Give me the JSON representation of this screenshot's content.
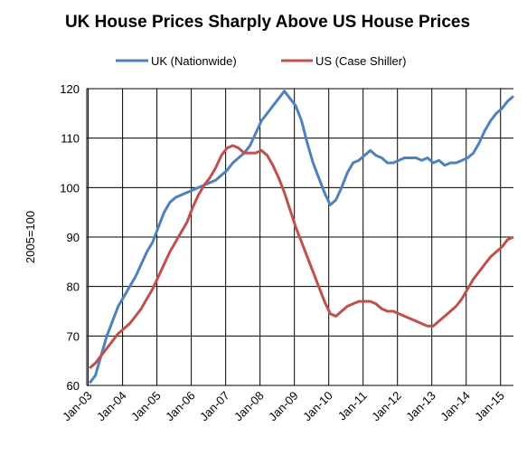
{
  "chart_data": {
    "type": "line",
    "title": "UK House Prices Sharply Above US House Prices",
    "ylabel": "2005=100",
    "xlabel": "",
    "ylim": [
      60,
      120
    ],
    "yticks": [
      "60",
      "70",
      "80",
      "90",
      "100",
      "110",
      "120"
    ],
    "xlim": [
      "2003-01",
      "2015-05"
    ],
    "xticks": [
      "Jan-03",
      "Jan-04",
      "Jan-05",
      "Jan-06",
      "Jan-07",
      "Jan-08",
      "Jan-09",
      "Jan-10",
      "Jan-11",
      "Jan-12",
      "Jan-13",
      "Jan-14",
      "Jan-15"
    ],
    "grid": true,
    "legend_position": "top",
    "series": [
      {
        "name": "UK (Nationwide)",
        "color": "#4F81BD",
        "points": [
          [
            "2003-01",
            60.5
          ],
          [
            "2003-03",
            62
          ],
          [
            "2003-05",
            66
          ],
          [
            "2003-07",
            70
          ],
          [
            "2003-09",
            73
          ],
          [
            "2003-11",
            76
          ],
          [
            "2004-01",
            78
          ],
          [
            "2004-03",
            80
          ],
          [
            "2004-05",
            82
          ],
          [
            "2004-07",
            84.5
          ],
          [
            "2004-09",
            87
          ],
          [
            "2004-11",
            89
          ],
          [
            "2005-01",
            92
          ],
          [
            "2005-03",
            95
          ],
          [
            "2005-05",
            97
          ],
          [
            "2005-07",
            98
          ],
          [
            "2005-09",
            98.5
          ],
          [
            "2005-11",
            99
          ],
          [
            "2006-01",
            99.5
          ],
          [
            "2006-03",
            100
          ],
          [
            "2006-05",
            100.5
          ],
          [
            "2006-07",
            101
          ],
          [
            "2006-09",
            101.5
          ],
          [
            "2006-11",
            102.5
          ],
          [
            "2007-01",
            103.5
          ],
          [
            "2007-03",
            105
          ],
          [
            "2007-05",
            106
          ],
          [
            "2007-07",
            107
          ],
          [
            "2007-09",
            108.5
          ],
          [
            "2007-11",
            111
          ],
          [
            "2008-01",
            113.5
          ],
          [
            "2008-03",
            115
          ],
          [
            "2008-05",
            116.5
          ],
          [
            "2008-07",
            118
          ],
          [
            "2008-09",
            119.5
          ],
          [
            "2008-11",
            118
          ],
          [
            "2009-01",
            116.5
          ],
          [
            "2009-03",
            113.5
          ],
          [
            "2009-05",
            109
          ],
          [
            "2009-07",
            105
          ],
          [
            "2009-09",
            102
          ],
          [
            "2009-11",
            99
          ],
          [
            "2010-01",
            96.5
          ],
          [
            "2010-03",
            97.5
          ],
          [
            "2010-05",
            100
          ],
          [
            "2010-07",
            103
          ],
          [
            "2010-09",
            105
          ],
          [
            "2010-11",
            105.5
          ],
          [
            "2011-01",
            106.5
          ],
          [
            "2011-03",
            107.5
          ],
          [
            "2011-05",
            106.5
          ],
          [
            "2011-07",
            106
          ],
          [
            "2011-09",
            105
          ],
          [
            "2011-11",
            105
          ],
          [
            "2012-01",
            105.5
          ],
          [
            "2012-03",
            106
          ],
          [
            "2012-05",
            106
          ],
          [
            "2012-07",
            106
          ],
          [
            "2012-09",
            105.5
          ],
          [
            "2012-11",
            106
          ],
          [
            "2013-01",
            105
          ],
          [
            "2013-03",
            105.5
          ],
          [
            "2013-05",
            104.5
          ],
          [
            "2013-07",
            105
          ],
          [
            "2013-09",
            105
          ],
          [
            "2013-11",
            105.5
          ],
          [
            "2014-01",
            106
          ],
          [
            "2014-03",
            107
          ],
          [
            "2014-05",
            109
          ],
          [
            "2014-07",
            111.5
          ],
          [
            "2014-09",
            113.5
          ],
          [
            "2014-11",
            115
          ],
          [
            "2015-01",
            116
          ],
          [
            "2015-03",
            117.5
          ],
          [
            "2015-05",
            118.5
          ]
        ]
      },
      {
        "name": "US (Case Shiller)",
        "color": "#C0504D",
        "points": [
          [
            "2003-01",
            63.5
          ],
          [
            "2003-03",
            64.5
          ],
          [
            "2003-05",
            66
          ],
          [
            "2003-07",
            67.5
          ],
          [
            "2003-09",
            69
          ],
          [
            "2003-11",
            70.5
          ],
          [
            "2004-01",
            71.5
          ],
          [
            "2004-03",
            72.5
          ],
          [
            "2004-05",
            74
          ],
          [
            "2004-07",
            75.5
          ],
          [
            "2004-09",
            77.5
          ],
          [
            "2004-11",
            79.5
          ],
          [
            "2005-01",
            82
          ],
          [
            "2005-03",
            84.5
          ],
          [
            "2005-05",
            87
          ],
          [
            "2005-07",
            89
          ],
          [
            "2005-09",
            91
          ],
          [
            "2005-11",
            93
          ],
          [
            "2006-01",
            96
          ],
          [
            "2006-03",
            98.5
          ],
          [
            "2006-05",
            100.5
          ],
          [
            "2006-07",
            102
          ],
          [
            "2006-09",
            104
          ],
          [
            "2006-11",
            106.5
          ],
          [
            "2007-01",
            108
          ],
          [
            "2007-03",
            108.5
          ],
          [
            "2007-05",
            108
          ],
          [
            "2007-07",
            107
          ],
          [
            "2007-09",
            107
          ],
          [
            "2007-11",
            107
          ],
          [
            "2008-01",
            107.5
          ],
          [
            "2008-03",
            106.5
          ],
          [
            "2008-05",
            104.5
          ],
          [
            "2008-07",
            102
          ],
          [
            "2008-09",
            99
          ],
          [
            "2008-11",
            95.5
          ],
          [
            "2009-01",
            92
          ],
          [
            "2009-03",
            89
          ],
          [
            "2009-05",
            86
          ],
          [
            "2009-07",
            83
          ],
          [
            "2009-09",
            80
          ],
          [
            "2009-11",
            77
          ],
          [
            "2010-01",
            74.5
          ],
          [
            "2010-03",
            74
          ],
          [
            "2010-05",
            75
          ],
          [
            "2010-07",
            76
          ],
          [
            "2010-09",
            76.5
          ],
          [
            "2010-11",
            77
          ],
          [
            "2011-01",
            77
          ],
          [
            "2011-03",
            77
          ],
          [
            "2011-05",
            76.5
          ],
          [
            "2011-07",
            75.5
          ],
          [
            "2011-09",
            75
          ],
          [
            "2011-11",
            75
          ],
          [
            "2012-01",
            74.5
          ],
          [
            "2012-03",
            74
          ],
          [
            "2012-05",
            73.5
          ],
          [
            "2012-07",
            73
          ],
          [
            "2012-09",
            72.5
          ],
          [
            "2012-11",
            72
          ],
          [
            "2013-01",
            72
          ],
          [
            "2013-03",
            73
          ],
          [
            "2013-05",
            74
          ],
          [
            "2013-07",
            75
          ],
          [
            "2013-09",
            76
          ],
          [
            "2013-11",
            77.5
          ],
          [
            "2014-01",
            79.5
          ],
          [
            "2014-03",
            81.5
          ],
          [
            "2014-05",
            83
          ],
          [
            "2014-07",
            84.5
          ],
          [
            "2014-09",
            86
          ],
          [
            "2014-11",
            87
          ],
          [
            "2015-01",
            88
          ],
          [
            "2015-03",
            89.5
          ],
          [
            "2015-05",
            90
          ]
        ]
      }
    ]
  }
}
